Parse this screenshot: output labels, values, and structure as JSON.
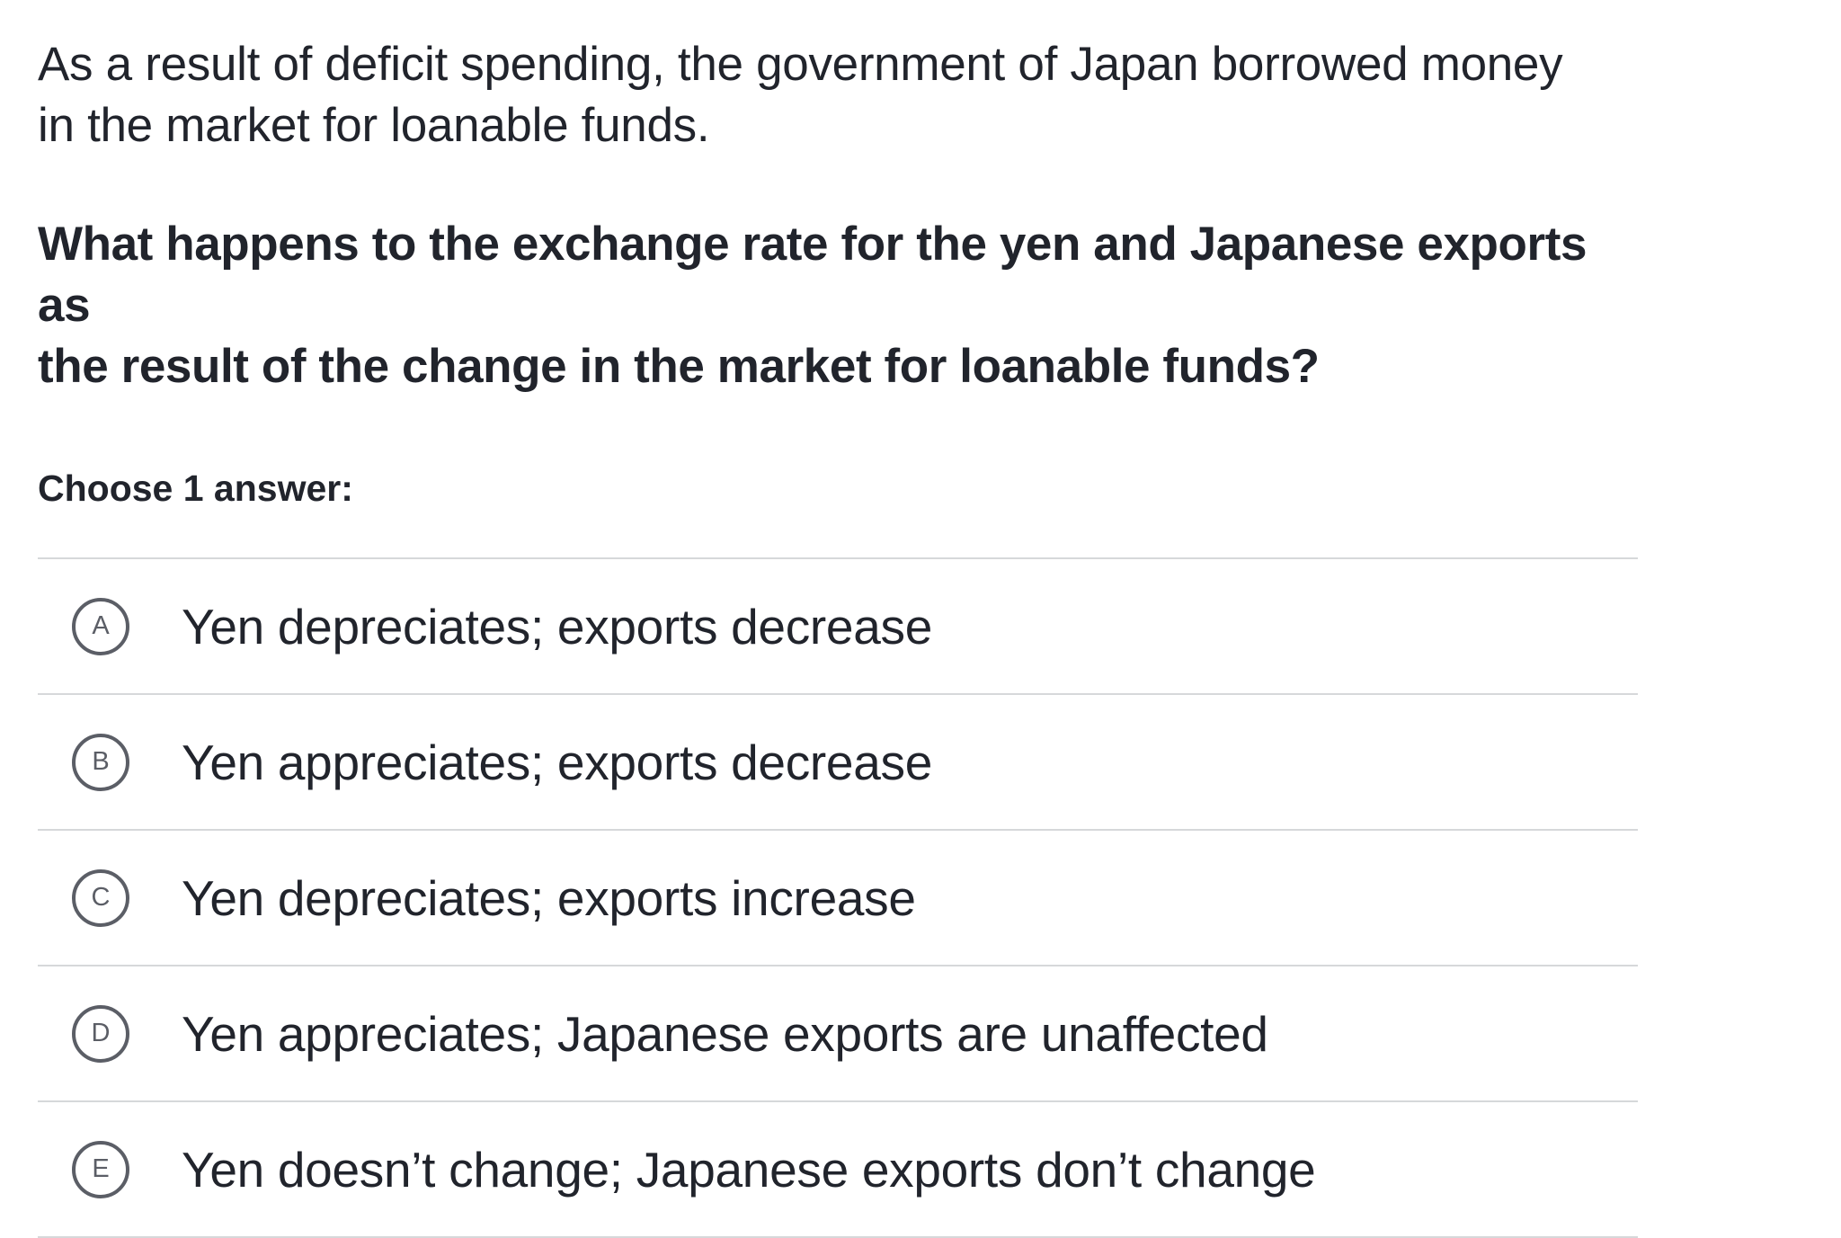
{
  "prompt": {
    "line1": "As a result of deficit spending, the government of Japan borrowed money",
    "line2": "in the market for loanable funds."
  },
  "question": {
    "line1": "What happens to the exchange rate for the yen and Japanese exports as",
    "line2": "the result of the change in the market for loanable funds?"
  },
  "instruction": "Choose 1 answer:",
  "choices": [
    {
      "letter": "A",
      "text": "Yen depreciates; exports decrease"
    },
    {
      "letter": "B",
      "text": "Yen appreciates; exports decrease"
    },
    {
      "letter": "C",
      "text": "Yen depreciates; exports increase"
    },
    {
      "letter": "D",
      "text": "Yen appreciates; Japanese exports are unaffected"
    },
    {
      "letter": "E",
      "text": "Yen doesn’t change; Japanese exports don’t change"
    }
  ]
}
